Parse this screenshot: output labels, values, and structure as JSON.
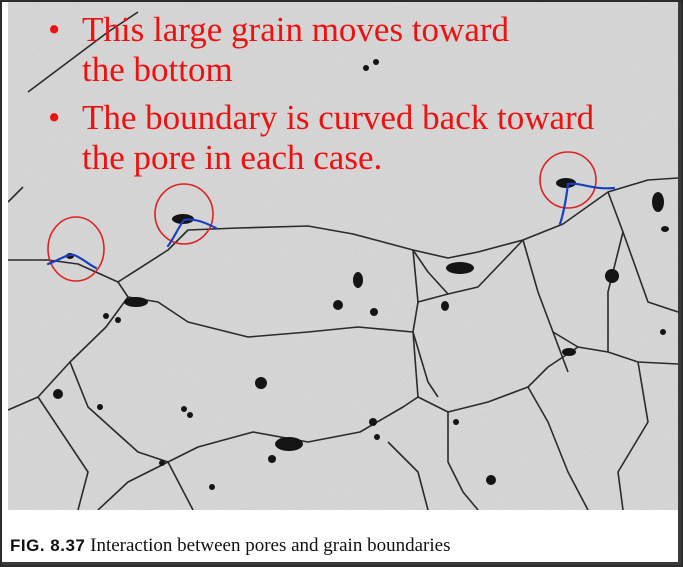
{
  "slide": {
    "bullets": [
      {
        "lines": [
          "This large grain moves toward",
          "the bottom"
        ]
      },
      {
        "lines": [
          "The boundary is curved back toward",
          "the pore in each case."
        ]
      }
    ],
    "bullet_glyph": "•"
  },
  "figure": {
    "label": "FIG. 8.37",
    "caption": "Interaction between pores and grain boundaries"
  },
  "colors": {
    "bullet_text": "#ee1111",
    "annotation_circle": "#dd2222",
    "annotation_stroke": "#1a3fbf",
    "micrograph_bg": "#d9d9d9"
  }
}
